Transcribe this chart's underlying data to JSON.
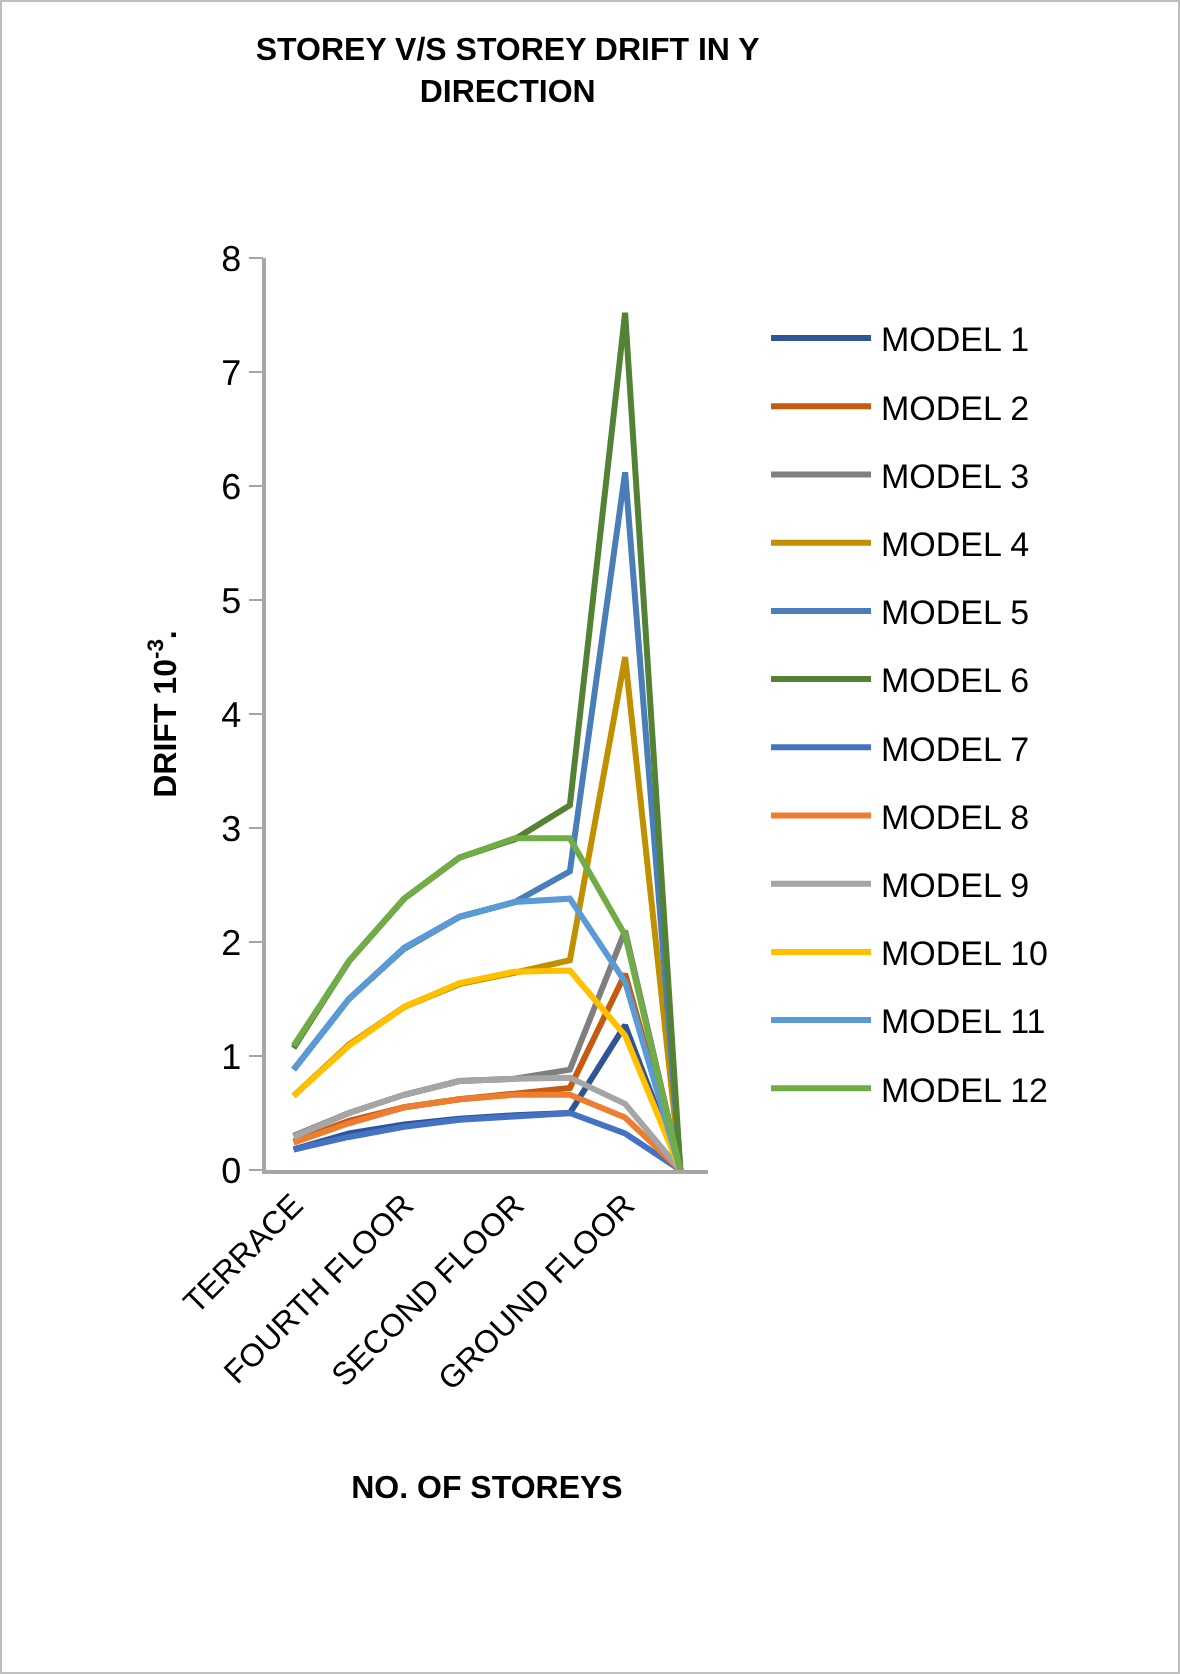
{
  "chart_data": {
    "type": "line",
    "title": "STOREY V/S STOREY DRIFT IN Y DIRECTION",
    "xlabel": "NO. OF STOREYS",
    "ylabel": "DRIFT 10$^{-3}$.",
    "categories": [
      "TERRACE",
      null,
      "FOURTH FLOOR",
      null,
      "SECOND FLOOR",
      null,
      "GROUND FLOOR",
      null
    ],
    "ylim": [
      0,
      8
    ],
    "yticks": [
      0,
      1,
      2,
      3,
      4,
      5,
      6,
      7,
      8
    ],
    "grid": false,
    "legend": "right",
    "marker": "none",
    "line_style": "solid",
    "series": [
      {
        "name": "MODEL 1",
        "color": "#2f5597",
        "values": [
          0.18,
          0.32,
          0.4,
          0.45,
          0.48,
          0.5,
          1.27,
          0
        ]
      },
      {
        "name": "MODEL 2",
        "color": "#c55a11",
        "values": [
          0.25,
          0.43,
          0.55,
          0.62,
          0.67,
          0.72,
          1.72,
          0
        ]
      },
      {
        "name": "MODEL 3",
        "color": "#7f7f7f",
        "values": [
          0.3,
          0.5,
          0.66,
          0.78,
          0.8,
          0.88,
          2.1,
          0
        ]
      },
      {
        "name": "MODEL 4",
        "color": "#bf9000",
        "values": [
          0.65,
          1.1,
          1.43,
          1.63,
          1.73,
          1.84,
          4.5,
          0
        ]
      },
      {
        "name": "MODEL 5",
        "color": "#4a7eb8",
        "values": [
          0.88,
          1.5,
          1.94,
          2.22,
          2.35,
          2.62,
          6.12,
          0
        ]
      },
      {
        "name": "MODEL 6",
        "color": "#548235",
        "values": [
          1.07,
          1.83,
          2.38,
          2.74,
          2.9,
          3.2,
          7.52,
          0
        ]
      },
      {
        "name": "MODEL 7",
        "color": "#4472c4",
        "values": [
          0.18,
          0.29,
          0.38,
          0.44,
          0.47,
          0.5,
          0.32,
          0
        ]
      },
      {
        "name": "MODEL 8",
        "color": "#ed7d31",
        "values": [
          0.24,
          0.41,
          0.55,
          0.62,
          0.66,
          0.66,
          0.46,
          0
        ]
      },
      {
        "name": "MODEL 9",
        "color": "#a5a5a5",
        "values": [
          0.29,
          0.5,
          0.66,
          0.78,
          0.8,
          0.81,
          0.58,
          0
        ]
      },
      {
        "name": "MODEL 10",
        "color": "#ffc000",
        "values": [
          0.65,
          1.09,
          1.43,
          1.64,
          1.74,
          1.75,
          1.18,
          0
        ]
      },
      {
        "name": "MODEL 11",
        "color": "#5b9bd5",
        "values": [
          0.88,
          1.5,
          1.95,
          2.22,
          2.35,
          2.38,
          1.65,
          0
        ]
      },
      {
        "name": "MODEL 12",
        "color": "#70ad47",
        "values": [
          1.09,
          1.83,
          2.38,
          2.74,
          2.91,
          2.91,
          2.06,
          0
        ]
      }
    ]
  }
}
